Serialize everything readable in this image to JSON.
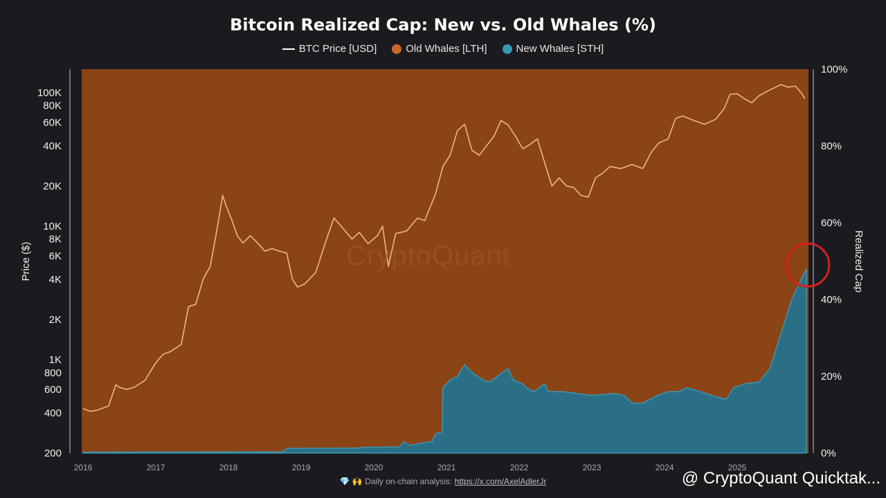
{
  "chart_data": {
    "type": "area",
    "title": "Bitcoin Realized Cap: New vs. Old Whales (%)",
    "legend": [
      {
        "name": "BTC Price [USD]",
        "color": "#ffffff",
        "marker": "line"
      },
      {
        "name": "Old Whales [LTH]",
        "color": "#c8692a",
        "marker": "dot"
      },
      {
        "name": "New Whales [STH]",
        "color": "#3a97b5",
        "marker": "dot"
      }
    ],
    "legend_position": "top-center",
    "ylabel_left": "Price ($)",
    "ylabel_right": "Realized Cap",
    "y_left_scale": "log",
    "y_left_ticks": [
      200,
      400,
      600,
      800,
      1000,
      2000,
      4000,
      6000,
      8000,
      10000,
      20000,
      40000,
      60000,
      80000,
      100000
    ],
    "y_left_tick_labels": [
      "200",
      "400",
      "600",
      "800",
      "1K",
      "2K",
      "4K",
      "6K",
      "8K",
      "10K",
      "20K",
      "40K",
      "60K",
      "80K",
      "100K"
    ],
    "y_right_ticks": [
      0,
      20,
      40,
      60,
      80,
      100
    ],
    "y_right_tick_labels": [
      "0%",
      "20%",
      "40%",
      "60%",
      "80%",
      "100%"
    ],
    "x_ticks": [
      "2016",
      "2017",
      "2018",
      "2019",
      "2020",
      "2021",
      "2022",
      "2023",
      "2024",
      "2025"
    ],
    "x_range": [
      2015.98,
      2025.98
    ],
    "grid": false,
    "series": [
      {
        "name": "BTC Price [USD]",
        "color": "#f4b48a",
        "x": [
          2016.0,
          2016.1,
          2016.2,
          2016.35,
          2016.45,
          2016.5,
          2016.6,
          2016.7,
          2016.85,
          2017.0,
          2017.1,
          2017.2,
          2017.35,
          2017.45,
          2017.55,
          2017.65,
          2017.75,
          2017.85,
          2017.92,
          2017.97,
          2018.05,
          2018.12,
          2018.2,
          2018.3,
          2018.4,
          2018.5,
          2018.6,
          2018.7,
          2018.8,
          2018.88,
          2018.95,
          2019.05,
          2019.2,
          2019.35,
          2019.45,
          2019.55,
          2019.7,
          2019.8,
          2019.92,
          2020.05,
          2020.12,
          2020.2,
          2020.3,
          2020.45,
          2020.6,
          2020.7,
          2020.85,
          2020.95,
          2021.05,
          2021.15,
          2021.25,
          2021.35,
          2021.45,
          2021.55,
          2021.65,
          2021.75,
          2021.85,
          2021.95,
          2022.05,
          2022.15,
          2022.25,
          2022.35,
          2022.45,
          2022.55,
          2022.65,
          2022.75,
          2022.85,
          2022.95,
          2023.05,
          2023.15,
          2023.25,
          2023.4,
          2023.55,
          2023.7,
          2023.82,
          2023.92,
          2024.05,
          2024.15,
          2024.25,
          2024.4,
          2024.55,
          2024.7,
          2024.82,
          2024.9,
          2025.0,
          2025.1,
          2025.2,
          2025.3,
          2025.45,
          2025.6,
          2025.7,
          2025.8,
          2025.88,
          2025.93
        ],
        "values": [
          430,
          410,
          420,
          450,
          650,
          620,
          600,
          620,
          700,
          950,
          1100,
          1150,
          1300,
          2500,
          2600,
          4000,
          5000,
          10000,
          17000,
          14000,
          11000,
          8500,
          7500,
          8500,
          7500,
          6500,
          6800,
          6500,
          6300,
          4000,
          3500,
          3700,
          4500,
          8000,
          11500,
          10000,
          8000,
          9000,
          7400,
          8500,
          10000,
          5000,
          8800,
          9200,
          11500,
          11000,
          17500,
          28000,
          34000,
          52000,
          58000,
          37000,
          34000,
          40000,
          47000,
          62000,
          57000,
          47000,
          38000,
          41000,
          45000,
          30000,
          20000,
          23000,
          20000,
          19500,
          17000,
          16500,
          23000,
          25000,
          28000,
          27000,
          29000,
          27000,
          36000,
          42000,
          45000,
          64000,
          67000,
          62000,
          58000,
          63000,
          76000,
          97000,
          98000,
          90000,
          84000,
          95000,
          105000,
          115000,
          110000,
          112000,
          100000,
          90000
        ]
      },
      {
        "name": "New Whales [STH]",
        "color": "#3a97b5",
        "x": [
          2016.0,
          2018.75,
          2018.8,
          2019.8,
          2019.85,
          2020.35,
          2020.42,
          2020.48,
          2020.8,
          2020.85,
          2020.94,
          2020.95,
          2021.05,
          2021.15,
          2021.25,
          2021.35,
          2021.5,
          2021.6,
          2021.7,
          2021.85,
          2021.92,
          2022.05,
          2022.1,
          2022.2,
          2022.35,
          2022.4,
          2022.6,
          2022.8,
          2023.0,
          2023.3,
          2023.45,
          2023.55,
          2023.7,
          2023.9,
          2024.05,
          2024.2,
          2024.3,
          2024.5,
          2024.65,
          2024.85,
          2024.95,
          2025.1,
          2025.3,
          2025.45,
          2025.55,
          2025.65,
          2025.75,
          2025.85,
          2025.95
        ],
        "values": [
          0.2,
          0.3,
          1.2,
          1.3,
          1.5,
          1.6,
          3.0,
          2.0,
          3.0,
          5.0,
          5.5,
          17,
          19,
          20,
          23,
          21,
          19,
          18.5,
          20,
          22,
          19,
          18,
          17,
          16,
          18,
          16,
          16,
          15.5,
          15,
          15.5,
          15,
          13,
          13,
          15,
          16,
          16,
          17,
          16,
          15,
          14,
          17,
          18,
          18.5,
          22,
          28,
          34,
          40,
          44,
          48
        ]
      },
      {
        "name": "Old Whales [LTH]",
        "color": "#c8692a",
        "note": "complement",
        "values_rule": "100 - New Whales [STH]"
      }
    ],
    "annotations": [
      {
        "type": "circle",
        "color": "#d62020",
        "x": 2025.95,
        "y_percent": 49
      }
    ]
  },
  "watermark": "CryptoQuant",
  "footer": {
    "prefix_icons": "💎 🙌",
    "text": "Daily on-chain analysis:",
    "link": "https://x.com/AxelAdlerJr"
  },
  "brand": "@ CryptoQuant Quicktak..."
}
